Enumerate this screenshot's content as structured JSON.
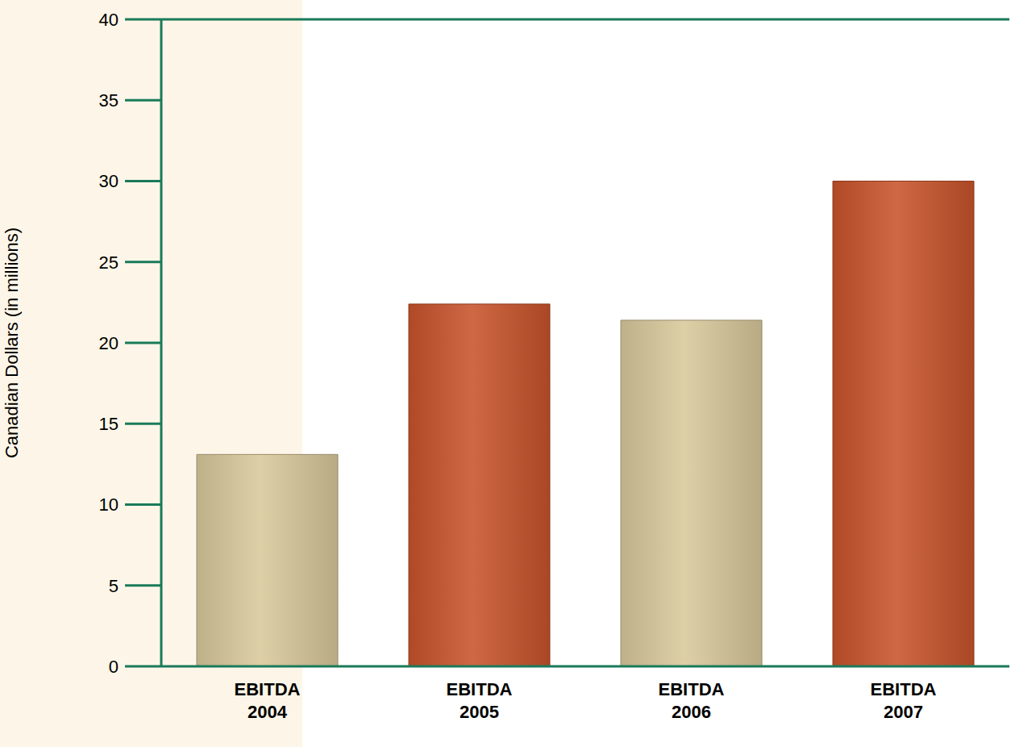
{
  "chart_data": {
    "type": "bar",
    "y_label": "Canadian Dollars (in millions)",
    "categories": [
      "EBITDA 2004",
      "EBITDA 2005",
      "EBITDA 2006",
      "EBITDA 2007"
    ],
    "values": [
      13.1,
      22.4,
      21.4,
      30.0
    ],
    "colors": [
      "#d8c89a",
      "#c8532a",
      "#d8c89a",
      "#c8532a"
    ],
    "ylim": [
      0,
      40
    ],
    "yticks": [
      0,
      5,
      10,
      15,
      20,
      25,
      30,
      35,
      40
    ],
    "grid": false
  }
}
